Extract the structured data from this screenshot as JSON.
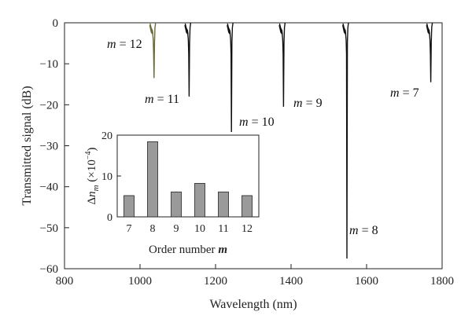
{
  "chart_data": [
    {
      "type": "line",
      "xlabel": "Wavelength (nm)",
      "ylabel": "Transmitted signal (dB)",
      "xlim": [
        800,
        1800
      ],
      "ylim": [
        -60,
        0
      ],
      "xticks": [
        800,
        1000,
        1200,
        1400,
        1600,
        1800
      ],
      "yticks": [
        0,
        -10,
        -20,
        -30,
        -40,
        -50,
        -60
      ],
      "grid": false,
      "dips": [
        {
          "order": 12,
          "wavelength": 1037,
          "min_db": -13.5,
          "color": "#6b6b3a"
        },
        {
          "order": 11,
          "wavelength": 1130,
          "min_db": -18,
          "color": "#111111"
        },
        {
          "order": 10,
          "wavelength": 1242,
          "min_db": -27,
          "color": "#111111"
        },
        {
          "order": 9,
          "wavelength": 1380,
          "min_db": -20.5,
          "color": "#111111"
        },
        {
          "order": 8,
          "wavelength": 1548,
          "min_db": -57.5,
          "color": "#111111"
        },
        {
          "order": 7,
          "wavelength": 1770,
          "min_db": -14.5,
          "color": "#111111"
        }
      ],
      "annotations": [
        {
          "prefix": "m",
          "text": " = 12"
        },
        {
          "prefix": "m",
          "text": " = 11"
        },
        {
          "prefix": "m",
          "text": " = 10"
        },
        {
          "prefix": "m",
          "text": " = 9"
        },
        {
          "prefix": "m",
          "text": " = 8"
        },
        {
          "prefix": "m",
          "text": " = 7"
        }
      ]
    },
    {
      "type": "bar",
      "xlabel": "Order number",
      "xlabel_var": "m",
      "ylabel": "Δn_m (×10^−4)",
      "categories": [
        "7",
        "8",
        "9",
        "10",
        "11",
        "12"
      ],
      "values": [
        5.2,
        18.4,
        6.1,
        8.2,
        6.1,
        5.2
      ],
      "ylim": [
        0,
        20
      ],
      "yticks": [
        0,
        10,
        20
      ],
      "bar_color": "#9a9a9a"
    }
  ]
}
